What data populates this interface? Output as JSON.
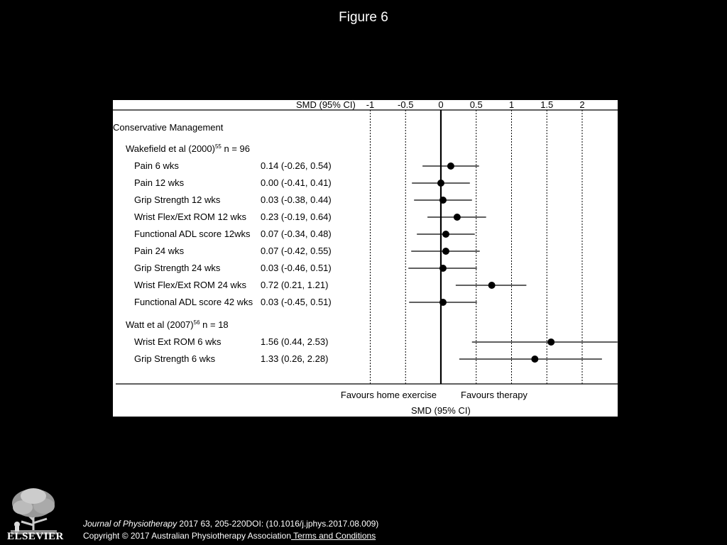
{
  "slide": {
    "title": "Figure 6"
  },
  "chart_data": {
    "type": "forest",
    "title": "",
    "xlabel": "SMD (95% CI)",
    "header_label": "SMD (95% CI)",
    "x_ticks": [
      -1,
      -0.5,
      0,
      0.5,
      1,
      1.5,
      2
    ],
    "x_tick_labels": [
      "-1",
      "-0.5",
      "0",
      "0.5",
      "1",
      "1.5",
      "2"
    ],
    "xlim": [
      -1.05,
      2.5
    ],
    "favours_left": "Favours home exercise",
    "favours_right": "Favours therapy",
    "section": "Conservative Management",
    "studies": [
      {
        "label": "Wakefield et al (2000)",
        "ref": "55",
        "n_label": "n = 96",
        "rows": [
          {
            "label": "Pain 6 wks",
            "ci_text": "0.14 (-0.26, 0.54)",
            "smd": 0.14,
            "lo": -0.26,
            "hi": 0.54
          },
          {
            "label": "Pain 12 wks",
            "ci_text": "0.00 (-0.41, 0.41)",
            "smd": 0.0,
            "lo": -0.41,
            "hi": 0.41
          },
          {
            "label": "Grip Strength 12 wks",
            "ci_text": "0.03 (-0.38, 0.44)",
            "smd": 0.03,
            "lo": -0.38,
            "hi": 0.44
          },
          {
            "label": "Wrist Flex/Ext ROM 12 wks",
            "ci_text": "0.23 (-0.19, 0.64)",
            "smd": 0.23,
            "lo": -0.19,
            "hi": 0.64
          },
          {
            "label": "Functional ADL score 12wks",
            "ci_text": "0.07 (-0.34, 0.48)",
            "smd": 0.07,
            "lo": -0.34,
            "hi": 0.48
          },
          {
            "label": "Pain 24 wks",
            "ci_text": "0.07 (-0.42, 0.55)",
            "smd": 0.07,
            "lo": -0.42,
            "hi": 0.55
          },
          {
            "label": "Grip Strength 24 wks",
            "ci_text": "0.03 (-0.46, 0.51)",
            "smd": 0.03,
            "lo": -0.46,
            "hi": 0.51
          },
          {
            "label": "Wrist Flex/Ext ROM 24 wks",
            "ci_text": "0.72 (0.21, 1.21)",
            "smd": 0.72,
            "lo": 0.21,
            "hi": 1.21
          },
          {
            "label": "Functional ADL score 42 wks",
            "ci_text": "0.03 (-0.45, 0.51)",
            "smd": 0.03,
            "lo": -0.45,
            "hi": 0.51
          }
        ]
      },
      {
        "label": "Watt et al (2007)",
        "ref": "56",
        "n_label": "n = 18",
        "rows": [
          {
            "label": "Wrist Ext ROM 6 wks",
            "ci_text": "1.56 (0.44, 2.53)",
            "smd": 1.56,
            "lo": 0.44,
            "hi": 2.53
          },
          {
            "label": "Grip Strength 6 wks",
            "ci_text": "1.33 (0.26, 2.28)",
            "smd": 1.33,
            "lo": 0.26,
            "hi": 2.28
          }
        ]
      }
    ]
  },
  "footer": {
    "logo_text": "ELSEVIER",
    "journal_name": "Journal of Physiotherapy",
    "journal_details": " 2017 63, 205-220DOI: (10.1016/j.jphys.2017.08.009)",
    "copyright": "Copyright © 2017 Australian Physiotherapy Association",
    "terms_link": " Terms and Conditions"
  }
}
